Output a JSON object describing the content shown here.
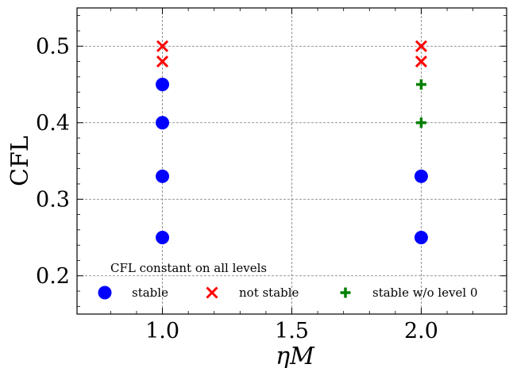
{
  "chart_data": {
    "type": "scatter",
    "xlabel": "ηM",
    "ylabel": "CFL",
    "xlim": [
      0.67,
      2.33
    ],
    "ylim": [
      0.15,
      0.55
    ],
    "x_ticks": [
      1.0,
      1.5,
      2.0
    ],
    "x_tick_labels": [
      "1.0",
      "1.5",
      "2.0"
    ],
    "y_ticks": [
      0.2,
      0.3,
      0.4,
      0.5
    ],
    "y_tick_labels": [
      "0.2",
      "0.3",
      "0.4",
      "0.5"
    ],
    "grid": true,
    "legend": {
      "title": "CFL constant on all levels",
      "position": "bottom",
      "ncol": 3
    },
    "series": [
      {
        "name": "stable",
        "marker": "circle",
        "color": "#0000ff",
        "points": [
          {
            "x": 1.0,
            "y": 0.25
          },
          {
            "x": 1.0,
            "y": 0.33
          },
          {
            "x": 1.0,
            "y": 0.4
          },
          {
            "x": 1.0,
            "y": 0.45
          },
          {
            "x": 2.0,
            "y": 0.25
          },
          {
            "x": 2.0,
            "y": 0.33
          }
        ]
      },
      {
        "name": "not stable",
        "marker": "x",
        "color": "#ff0000",
        "points": [
          {
            "x": 1.0,
            "y": 0.48
          },
          {
            "x": 1.0,
            "y": 0.5
          },
          {
            "x": 2.0,
            "y": 0.48
          },
          {
            "x": 2.0,
            "y": 0.5
          }
        ]
      },
      {
        "name": "stable w/o level 0",
        "marker": "plus",
        "color": "#008000",
        "points": [
          {
            "x": 2.0,
            "y": 0.4
          },
          {
            "x": 2.0,
            "y": 0.45
          }
        ]
      }
    ]
  }
}
